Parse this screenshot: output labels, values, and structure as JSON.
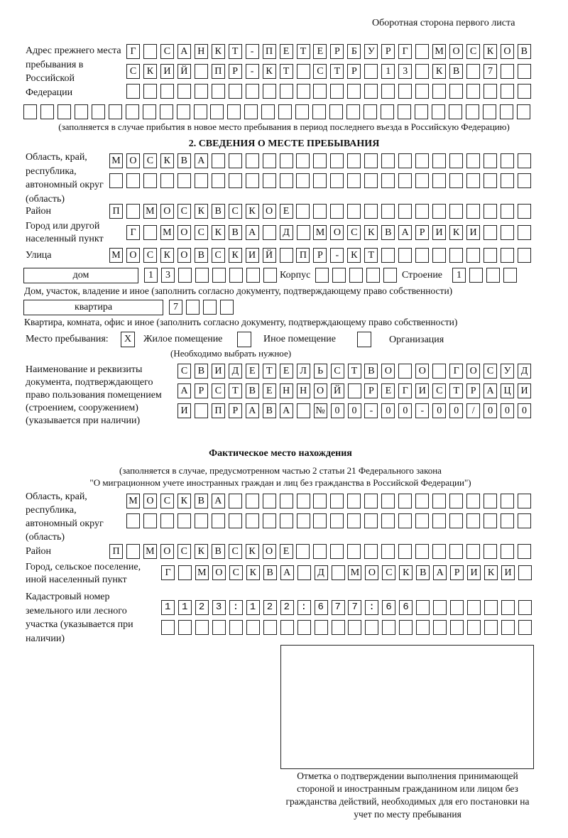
{
  "header": {
    "page_note": "Оборотная сторона первого листа"
  },
  "prev_address": {
    "label": "Адрес прежнего места пребывания в Российской Федерации",
    "rows": [
      "Г САНКТ-ПЕТЕРБУРГ МОСКОВ",
      "СКИЙ ПР-КТ СТР 13 КВ 7  ",
      "",
      ""
    ],
    "note": "(заполняется в случае прибытия в новое место пребывания в период последнего въезда в Российскую Федерацию)"
  },
  "section2": {
    "title": "2. СВЕДЕНИЯ О МЕСТЕ ПРЕБЫВАНИЯ",
    "region_label": "Область, край, республика, автономный округ (область)",
    "region_rows": [
      "МОСКВА",
      ""
    ],
    "district_label": "Район",
    "district": "П МОСКВСКОЕ",
    "city_label": "Город или другой населенный пункт",
    "city": "Г МОСКВА Д МОСКВАРИКИ",
    "street_label": "Улица",
    "street": "МОСКОВСКИЙ ПР-КТ",
    "house_type": "дом",
    "house_number": "13",
    "korpus_label": "Корпус",
    "korpus": "",
    "building_label": "Строение",
    "building": "1",
    "house_note": "Дом, участок, владение и иное (заполнить согласно документу, подтверждающему право собственности)",
    "apt_type": "квартира",
    "apt_number": "7",
    "apt_note": "Квартира, комната, офис и иное (заполнить согласно документу, подтверждающему право собственности)",
    "stay_label": "Место пребывания:",
    "stay_options": [
      {
        "label": "Жилое помещение",
        "mark": "X"
      },
      {
        "label": "Иное помещение",
        "mark": ""
      },
      {
        "label": "Организация",
        "mark": ""
      }
    ],
    "stay_note": "(Необходимо выбрать нужное)",
    "doc_label": "Наименование и реквизиты документа, подтверждающего право пользования помещением (строением, сооружением) (указывается при наличии)",
    "doc_rows": [
      "СВИДЕТЕЛЬСТВО О ГОСУД",
      "АРСТВЕННОЙ РЕГИСТРАЦИ",
      "И ПРАВА №00-00-00/000"
    ]
  },
  "actual": {
    "title": "Фактическое место нахождения",
    "note1": "(заполняется в случае, предусмотренном частью 2 статьи 21 Федерального закона",
    "note2": "\"О миграционном учете иностранных граждан и лиц без гражданства в Российской Федерации\")",
    "region_label": "Область, край, республика, автономный округ (область)",
    "region_rows": [
      "МОСКВА",
      ""
    ],
    "district_label": "Район",
    "district": "П МОСКВСКОЕ",
    "city_label": "Город, сельское поселение, иной населенный пункт",
    "city": "Г МОСКВА Д МОСКВАРИКИ",
    "cadastral_label": "Кадастровый номер земельного или лесного участка (указывается при наличии)",
    "cadastral_rows": [
      "1123:122:677:66",
      ""
    ]
  },
  "stamp": {
    "caption": "Отметка о подтверждении выполнения принимающей стороной и иностранным гражданином или лицом без гражданства действий, необходимых для его постановки на учет по месту пребывания"
  }
}
